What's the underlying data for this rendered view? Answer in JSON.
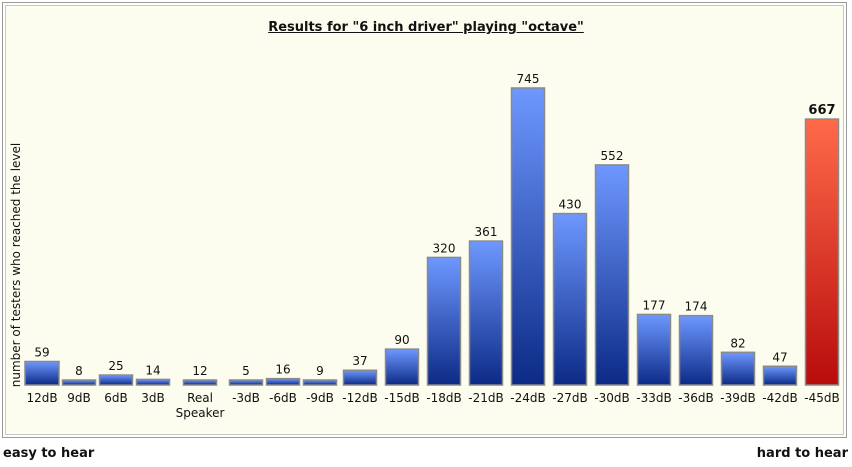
{
  "chart_data": {
    "type": "bar",
    "title": "Results for \"6 inch driver\" playing \"octave\"",
    "ylabel": "number of testers who reached the level",
    "xlabel": "",
    "categories": [
      "12dB",
      "9dB",
      "6dB",
      "3dB",
      "Real Speaker",
      "-3dB",
      "-6dB",
      "-9dB",
      "-12dB",
      "-15dB",
      "-18dB",
      "-21dB",
      "-24dB",
      "-27dB",
      "-30dB",
      "-33dB",
      "-36dB",
      "-39dB",
      "-42dB",
      "-45dB"
    ],
    "values": [
      59,
      8,
      25,
      14,
      12,
      5,
      16,
      9,
      37,
      90,
      320,
      361,
      745,
      430,
      552,
      177,
      174,
      82,
      47,
      667
    ],
    "highlight_index": 19,
    "colors": {
      "bar_top": "#6e98ff",
      "bar_bottom": "#0c2a86",
      "highlight_top": "#ff6a4a",
      "highlight_bottom": "#b80c0c",
      "background": "#fdfdef"
    },
    "ylim": [
      0,
      760
    ],
    "grid": false,
    "legend": "none"
  },
  "footer": {
    "left": "easy to hear",
    "right": "hard to hear"
  }
}
